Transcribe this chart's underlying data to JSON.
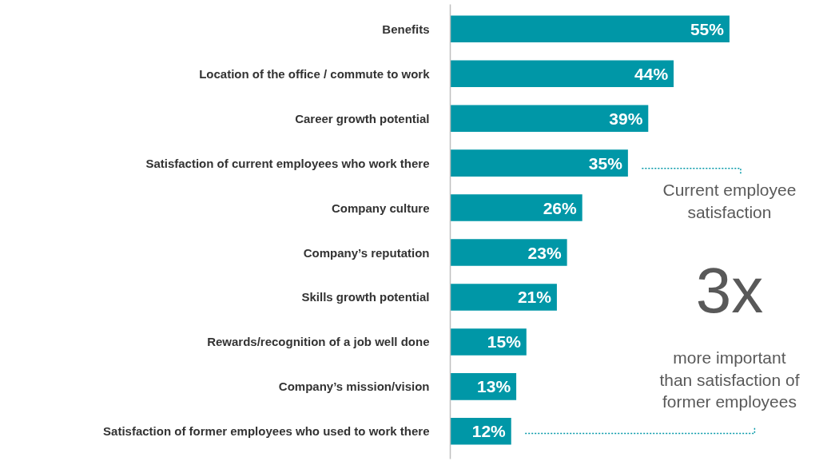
{
  "chart_data": {
    "type": "bar",
    "orientation": "horizontal",
    "categories": [
      "Benefits",
      "Location of the office / commute to work",
      "Career growth potential",
      "Satisfaction of current employees who work there",
      "Company culture",
      "Company’s reputation",
      "Skills growth potential",
      "Rewards/recognition of a job well done",
      "Company’s mission/vision",
      "Satisfaction of former employees who used to work there"
    ],
    "values": [
      55,
      44,
      39,
      35,
      26,
      23,
      21,
      15,
      13,
      12
    ],
    "value_labels": [
      "55%",
      "44%",
      "39%",
      "35%",
      "26%",
      "23%",
      "21%",
      "15%",
      "13%",
      "12%"
    ],
    "color": "#0097a7",
    "annotations": [
      "Current employee\nsatisfaction",
      "3x",
      "more important\nthan satisfaction of\nformer employees"
    ],
    "grid": false
  }
}
